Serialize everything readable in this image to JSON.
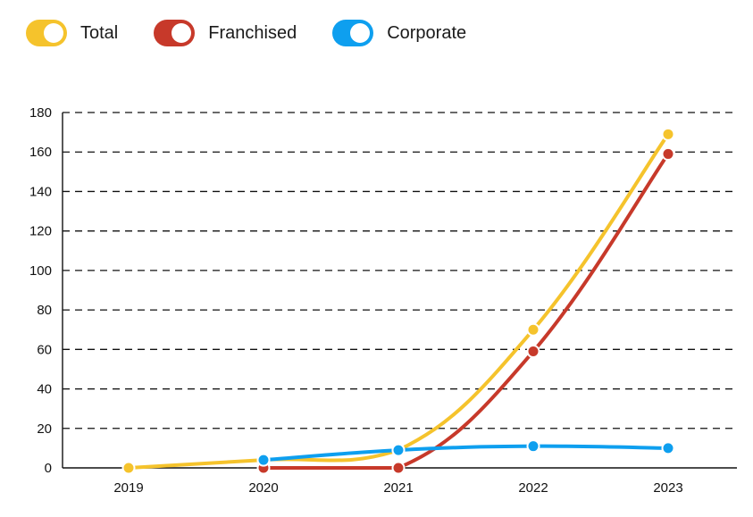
{
  "legend": [
    {
      "label": "Total",
      "color": "#F5C32C"
    },
    {
      "label": "Franchised",
      "color": "#C7392A"
    },
    {
      "label": "Corporate",
      "color": "#0E9FEF"
    }
  ],
  "chart_data": {
    "type": "line",
    "x": [
      "2019",
      "2020",
      "2021",
      "2022",
      "2023"
    ],
    "series": [
      {
        "name": "Total",
        "color": "#F5C32C",
        "values": [
          0,
          4,
          9,
          70,
          169
        ]
      },
      {
        "name": "Franchised",
        "color": "#C7392A",
        "values": [
          null,
          0,
          0,
          59,
          159
        ]
      },
      {
        "name": "Corporate",
        "color": "#0E9FEF",
        "values": [
          null,
          4,
          9,
          11,
          10
        ]
      }
    ],
    "ylim": [
      0,
      180
    ],
    "yticks": [
      0,
      20,
      40,
      60,
      80,
      100,
      120,
      140,
      160,
      180
    ],
    "grid": "dashed-horizontal",
    "legend_position": "top-left",
    "title": "",
    "xlabel": "",
    "ylabel": ""
  }
}
